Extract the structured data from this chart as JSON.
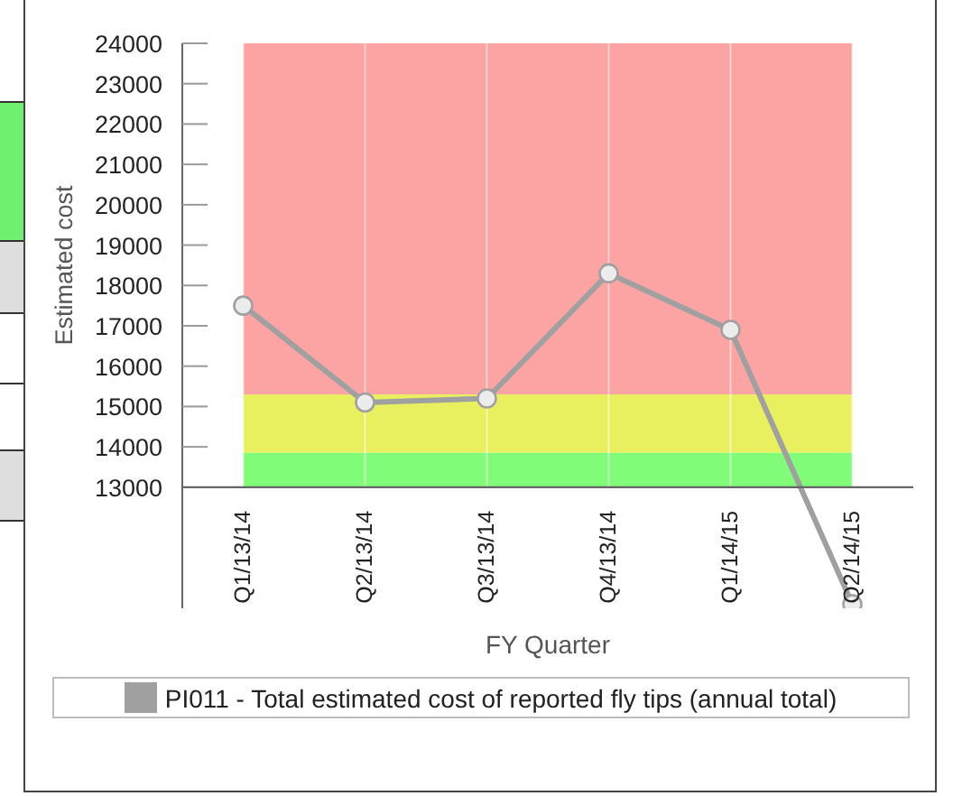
{
  "chart_data": {
    "type": "line",
    "categories": [
      "Q1/13/14",
      "Q2/13/14",
      "Q3/13/14",
      "Q4/13/14",
      "Q1/14/15",
      "Q2/14/15"
    ],
    "series": [
      {
        "name": "PI011 - Total estimated cost of reported fly tips (annual total)",
        "color": "#a0a0a0",
        "values": [
          17500,
          15100,
          15200,
          18300,
          16900,
          10100
        ]
      }
    ],
    "xlabel": "FY Quarter",
    "ylabel": "Estimated cost",
    "ylim": [
      10000,
      24000
    ],
    "yticks": [
      13000,
      14000,
      15000,
      16000,
      17000,
      18000,
      19000,
      20000,
      21000,
      22000,
      23000,
      24000
    ],
    "bands": [
      {
        "axis": "y",
        "from": 15300,
        "to": 24000,
        "color": "#fca4a4"
      },
      {
        "axis": "y",
        "from": 13850,
        "to": 15300,
        "color": "#e8f060"
      },
      {
        "axis": "y",
        "from": 13000,
        "to": 13850,
        "color": "#80fc78"
      }
    ],
    "grid": "x",
    "legend": "bottom",
    "marker": "circle",
    "line_style": "solid"
  }
}
